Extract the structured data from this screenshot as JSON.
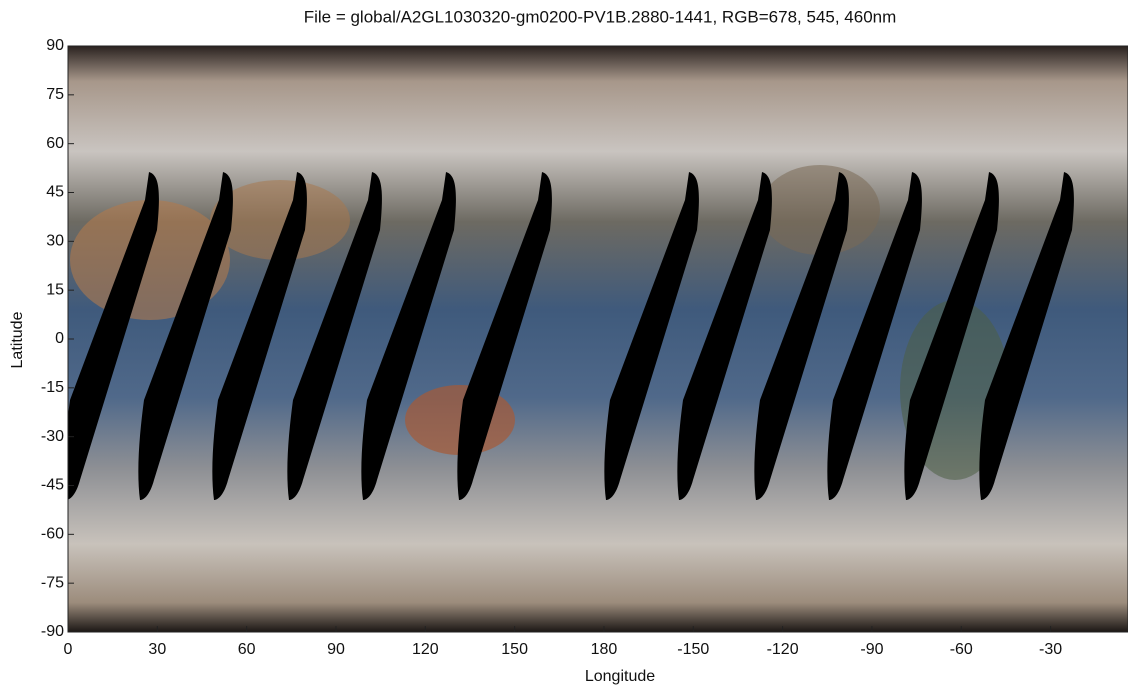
{
  "chart_data": {
    "type": "image-map",
    "title": "File = global/A2GL1030320-gm0200-PV1B.2880-1441, RGB=678, 545, 460nm",
    "x_label": "Longitude",
    "y_label": "Latitude",
    "xlim": [
      0,
      356
    ],
    "ylim": [
      -90,
      90
    ],
    "xticks": [
      0,
      30,
      60,
      90,
      120,
      150,
      180,
      {
        "value": 210,
        "label": "-150"
      },
      {
        "value": 240,
        "label": "-120"
      },
      {
        "value": 270,
        "label": "-90"
      },
      {
        "value": 300,
        "label": "-60"
      },
      {
        "value": 330,
        "label": "-30"
      }
    ],
    "yticks": [
      -90,
      -75,
      -60,
      -45,
      -30,
      -15,
      0,
      15,
      30,
      45,
      60,
      75,
      90
    ]
  }
}
